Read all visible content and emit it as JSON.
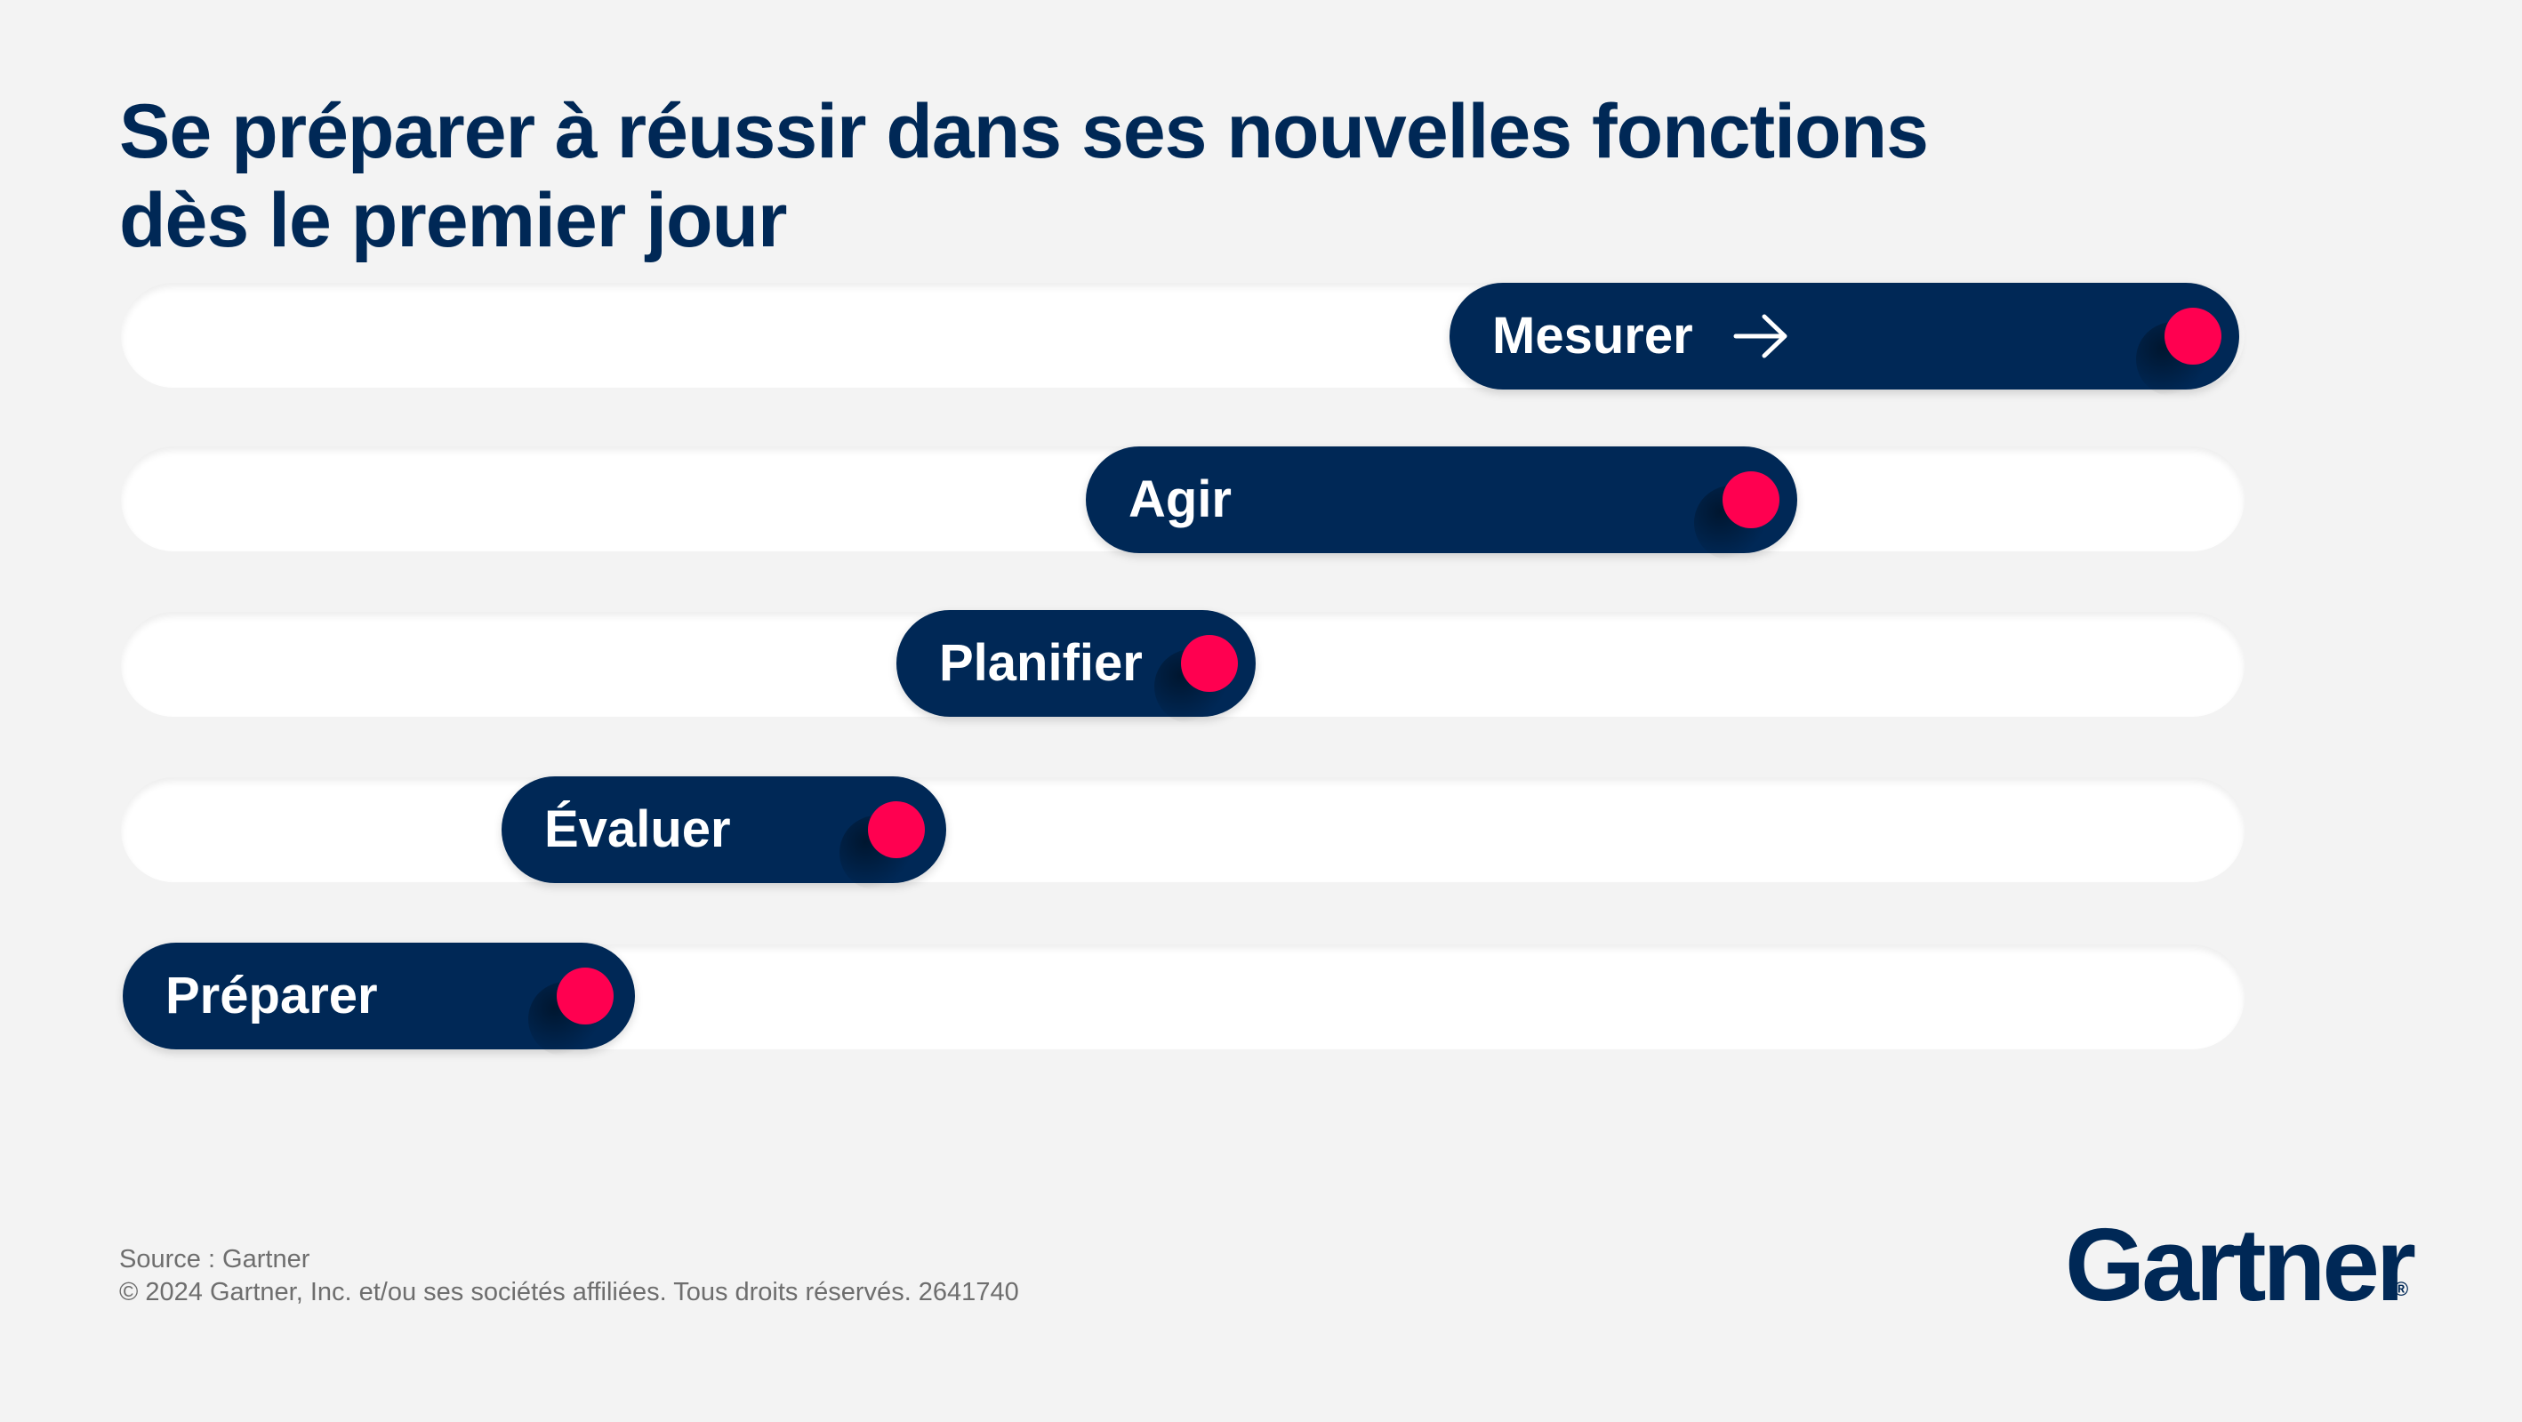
{
  "title": {
    "line1": "Se préparer à réussir dans ses nouvelles fonctions",
    "line2": "dès le premier jour"
  },
  "steps": [
    {
      "label": "Mesurer",
      "has_arrow": true
    },
    {
      "label": "Agir"
    },
    {
      "label": "Planifier"
    },
    {
      "label": "Évaluer"
    },
    {
      "label": "Préparer"
    }
  ],
  "footer": {
    "source": "Source : Gartner",
    "copyright": "© 2024 Gartner, Inc. et/ou ses sociétés affiliées. Tous droits réservés. 2641740"
  },
  "logo": {
    "text": "Gartner",
    "mark": "®"
  },
  "colors": {
    "navy": "#002856",
    "accent": "#ff0050",
    "track": "#ffffff",
    "background": "#f3f3f3"
  },
  "icons": [
    "arrow-right-icon"
  ]
}
